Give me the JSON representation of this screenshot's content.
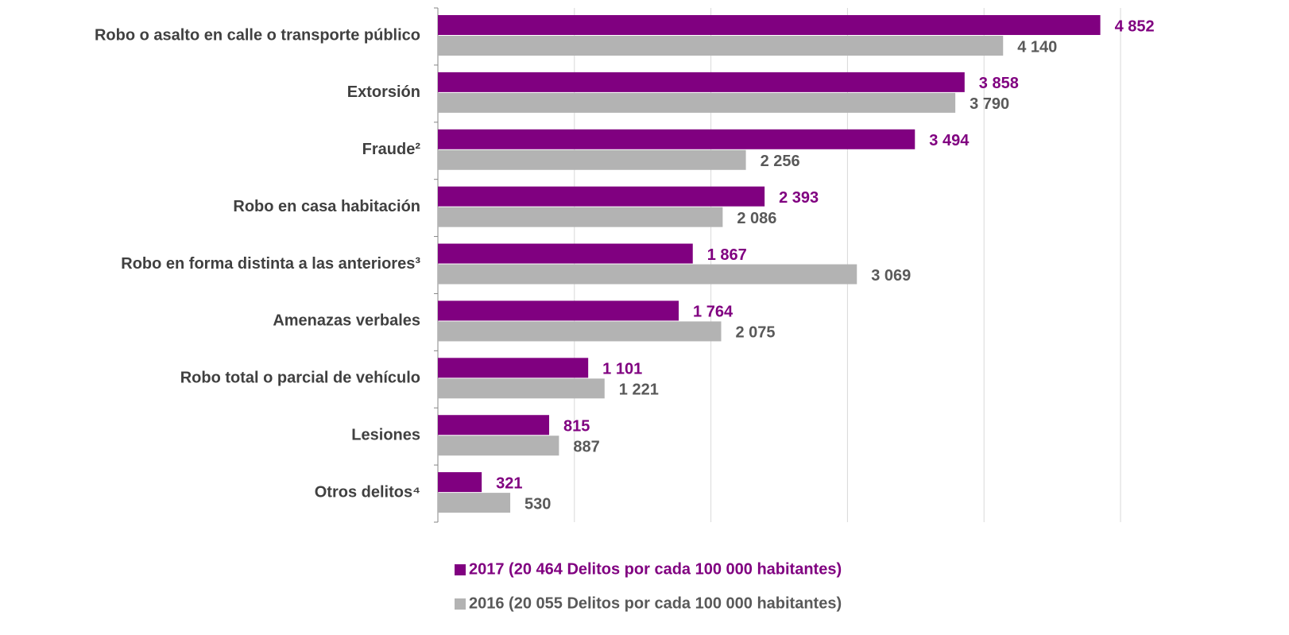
{
  "chart_data": {
    "type": "bar",
    "orientation": "horizontal",
    "categories": [
      "Robo o asalto en calle o transporte público",
      "Extorsión",
      "Fraude²",
      "Robo en casa habitación",
      "Robo en forma distinta a las anteriores³",
      "Amenazas verbales",
      "Robo total o parcial de vehículo",
      "Lesiones",
      "Otros delitos⁴"
    ],
    "series": [
      {
        "name": "2017 (20 464 Delitos por cada 100 000 habitantes)",
        "color": "#800080",
        "values": [
          4852,
          3858,
          3494,
          2393,
          1867,
          1764,
          1101,
          815,
          321
        ],
        "value_labels": [
          "4 852",
          "3 858",
          "3 494",
          "2 393",
          "1 867",
          "1 764",
          "1 101",
          "815",
          "321"
        ]
      },
      {
        "name": "2016 (20 055 Delitos por cada 100 000 habitantes)",
        "color": "#b3b3b3",
        "values": [
          4140,
          3790,
          2256,
          2086,
          3069,
          2075,
          1221,
          887,
          530
        ],
        "value_labels": [
          "4 140",
          "3 790",
          "2 256",
          "2 086",
          "3 069",
          "2 075",
          "1 221",
          "887",
          "530"
        ]
      }
    ],
    "xlim": [
      0,
      5000
    ],
    "xticks": [
      0,
      1000,
      2000,
      3000,
      4000,
      5000
    ],
    "grid": true,
    "legend": "bottom"
  }
}
